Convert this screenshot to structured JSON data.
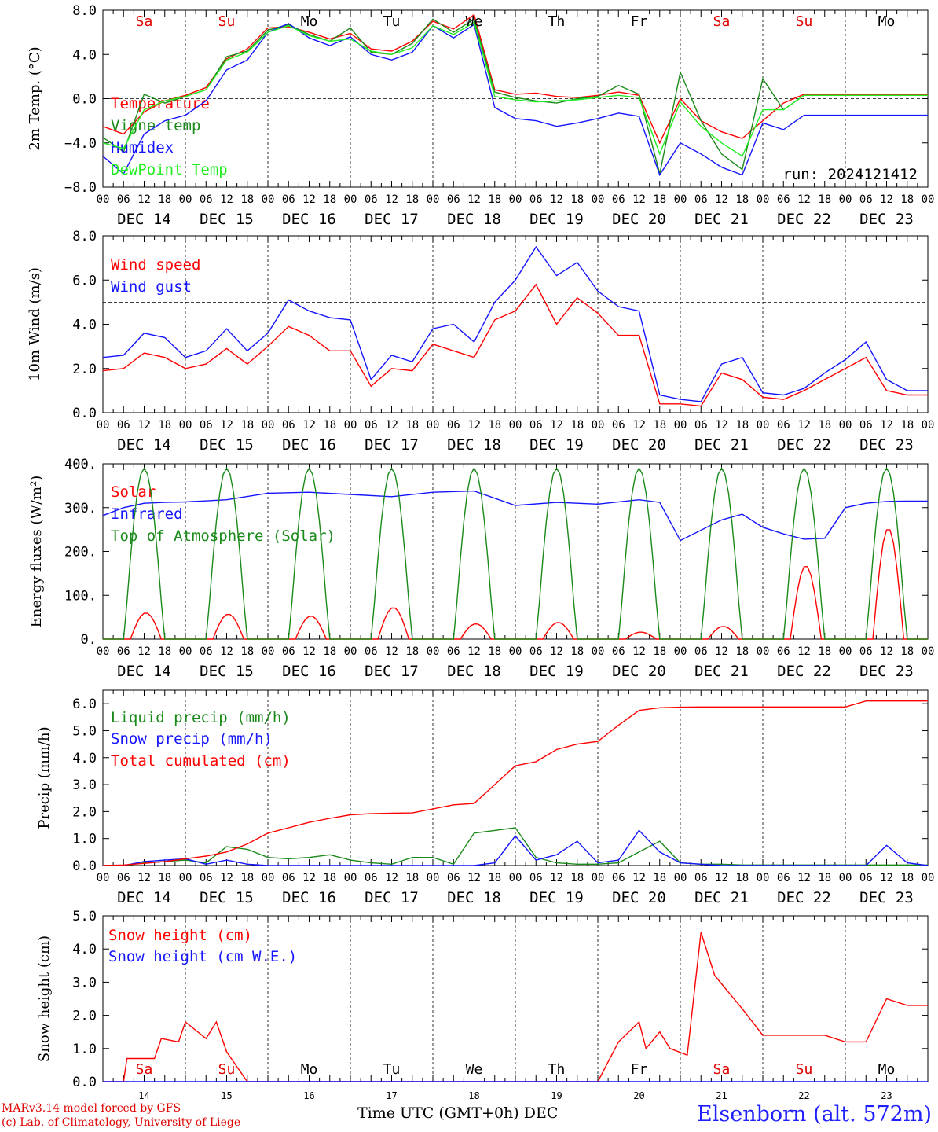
{
  "colors": {
    "red": "#ff0000",
    "darkgreen": "#1a8a1a",
    "blue": "#1515ff",
    "lightgreen": "#22ee22",
    "weekend": "#e00000"
  },
  "day_names": [
    "Sa",
    "Su",
    "Mo",
    "Tu",
    "We",
    "Th",
    "Fr",
    "Sa",
    "Su",
    "Mo"
  ],
  "weekend_flags": [
    true,
    true,
    false,
    false,
    false,
    false,
    false,
    true,
    true,
    false
  ],
  "dates": [
    "DEC 14",
    "DEC 15",
    "DEC 16",
    "DEC 17",
    "DEC 18",
    "DEC 19",
    "DEC 20",
    "DEC 21",
    "DEC 22",
    "DEC 23"
  ],
  "hour_ticks": [
    "00",
    "06",
    "12",
    "18"
  ],
  "last_hour_tick": "00",
  "day_numbers": [
    "14",
    "15",
    "16",
    "17",
    "18",
    "19",
    "20",
    "21",
    "22",
    "23"
  ],
  "run_label": "run: 2024121412",
  "footer": {
    "model": "MARv3.14 model forced by GFS",
    "lab": "(c) Lab. of Climatology, University of Liege",
    "xlabel": "Time UTC (GMT+0h) DEC",
    "station": "Elsenborn (alt. 572m)"
  },
  "chart_data": [
    {
      "type": "line",
      "ylabel": "2m Temp. (°C)",
      "ylim": [
        -8,
        8
      ],
      "yticks": [
        -8,
        -4,
        0,
        4,
        8
      ],
      "ytick_labels": [
        "−8.0",
        "−4.0",
        "0.0",
        "4.0",
        "8.0"
      ],
      "dashed_level": 0,
      "x_unit": "hours since DEC 14 00 UTC",
      "series": [
        {
          "name": "Temperature",
          "color": "#ff0000",
          "x": [
            0,
            6,
            12,
            18,
            24,
            30,
            36,
            42,
            48,
            54,
            60,
            66,
            72,
            78,
            84,
            90,
            96,
            102,
            108,
            114,
            120,
            126,
            132,
            138,
            144,
            150,
            156,
            162,
            168,
            174,
            180,
            186,
            192,
            198,
            204,
            210,
            216,
            222,
            228,
            234,
            240
          ],
          "y": [
            -2.5,
            -3.2,
            -1.2,
            -0.2,
            0.3,
            1.0,
            3.6,
            4.5,
            6.4,
            6.5,
            6.0,
            5.4,
            5.9,
            4.5,
            4.3,
            5.2,
            7.0,
            6.3,
            7.6,
            0.8,
            0.4,
            0.5,
            0.2,
            0.1,
            0.3,
            0.6,
            0.3,
            -4.0,
            0.0,
            -2.0,
            -3.0,
            -3.6,
            -2.0,
            -0.4,
            0.4,
            0.4,
            0.4,
            0.4,
            0.4,
            0.4,
            0.4
          ]
        },
        {
          "name": "Vigne temp",
          "color": "#1a8a1a",
          "x": [
            0,
            6,
            12,
            18,
            24,
            30,
            36,
            42,
            48,
            54,
            60,
            66,
            72,
            78,
            84,
            90,
            96,
            102,
            108,
            114,
            120,
            126,
            132,
            138,
            144,
            150,
            156,
            162,
            168,
            174,
            180,
            186,
            192,
            198,
            204,
            210,
            216,
            222,
            228,
            234,
            240
          ],
          "y": [
            -3.5,
            -4.8,
            0.4,
            -0.4,
            0.2,
            0.8,
            3.8,
            4.3,
            6.2,
            6.7,
            5.8,
            5.2,
            6.4,
            4.2,
            4.0,
            5.0,
            7.2,
            6.0,
            7.2,
            0.6,
            0.1,
            -0.2,
            -0.4,
            0.0,
            0.2,
            1.2,
            0.4,
            -6.8,
            2.4,
            -2.0,
            -5.0,
            -6.4,
            1.8,
            -1.0,
            0.3,
            0.3,
            0.3,
            0.3,
            0.3,
            0.3,
            0.3
          ]
        },
        {
          "name": "Humidex",
          "color": "#1515ff",
          "x": [
            0,
            6,
            12,
            18,
            24,
            30,
            36,
            42,
            48,
            54,
            60,
            66,
            72,
            78,
            84,
            90,
            96,
            102,
            108,
            114,
            120,
            126,
            132,
            138,
            144,
            150,
            156,
            162,
            168,
            174,
            180,
            186,
            192,
            198,
            204,
            210,
            216,
            222,
            228,
            234,
            240
          ],
          "y": [
            -5.2,
            -6.8,
            -3.2,
            -2.0,
            -1.5,
            -0.2,
            2.6,
            3.5,
            6.0,
            6.8,
            5.5,
            4.8,
            5.6,
            4.0,
            3.5,
            4.2,
            6.6,
            5.5,
            6.7,
            -0.8,
            -1.8,
            -2.0,
            -2.5,
            -2.2,
            -1.8,
            -1.3,
            -1.6,
            -6.9,
            -4.0,
            -5.0,
            -6.2,
            -6.9,
            -2.2,
            -2.8,
            -1.5,
            -1.5,
            -1.5,
            -1.5,
            -1.5,
            -1.5,
            -1.5
          ]
        },
        {
          "name": "DewPoint Temp",
          "color": "#22ee22",
          "x": [
            0,
            6,
            12,
            18,
            24,
            30,
            36,
            42,
            48,
            54,
            60,
            66,
            72,
            78,
            84,
            90,
            96,
            102,
            108,
            114,
            120,
            126,
            132,
            138,
            144,
            150,
            156,
            162,
            168,
            174,
            180,
            186,
            192,
            198,
            204,
            210,
            216,
            222,
            228,
            234,
            240
          ],
          "y": [
            -4.0,
            -4.5,
            -1.0,
            -0.2,
            0.2,
            0.8,
            3.5,
            4.2,
            6.0,
            6.6,
            5.7,
            5.2,
            5.4,
            4.3,
            4.0,
            4.6,
            6.6,
            5.8,
            6.9,
            0.2,
            -0.1,
            -0.3,
            -0.2,
            -0.1,
            0.1,
            0.3,
            0.1,
            -5.0,
            -0.3,
            -2.5,
            -4.0,
            -5.2,
            -1.0,
            -1.0,
            0.3,
            0.3,
            0.3,
            0.3,
            0.3,
            0.3,
            0.3
          ]
        }
      ]
    },
    {
      "type": "line",
      "ylabel": "10m Wind (m/s)",
      "ylim": [
        0,
        8
      ],
      "yticks": [
        0,
        2,
        4,
        6,
        8
      ],
      "ytick_labels": [
        "0.0",
        "2.0",
        "4.0",
        "6.0",
        "8.0"
      ],
      "dashed_level": 5,
      "series": [
        {
          "name": "Wind speed",
          "color": "#ff0000",
          "x": [
            0,
            6,
            12,
            18,
            24,
            30,
            36,
            42,
            48,
            54,
            60,
            66,
            72,
            78,
            84,
            90,
            96,
            102,
            108,
            114,
            120,
            126,
            132,
            138,
            144,
            150,
            156,
            162,
            168,
            174,
            180,
            186,
            192,
            198,
            204,
            210,
            216,
            222,
            228,
            234,
            240
          ],
          "y": [
            1.9,
            2.0,
            2.7,
            2.5,
            2.0,
            2.2,
            2.9,
            2.2,
            3.0,
            3.9,
            3.5,
            2.8,
            2.8,
            1.2,
            2.0,
            1.9,
            3.1,
            2.8,
            2.5,
            4.2,
            4.6,
            5.8,
            4.0,
            5.2,
            4.5,
            3.5,
            3.5,
            0.4,
            0.4,
            0.3,
            1.8,
            1.5,
            0.7,
            0.6,
            1.0,
            1.5,
            2.0,
            2.5,
            1.0,
            0.8,
            0.8
          ]
        },
        {
          "name": "Wind gust",
          "color": "#1515ff",
          "x": [
            0,
            6,
            12,
            18,
            24,
            30,
            36,
            42,
            48,
            54,
            60,
            66,
            72,
            78,
            84,
            90,
            96,
            102,
            108,
            114,
            120,
            126,
            132,
            138,
            144,
            150,
            156,
            162,
            168,
            174,
            180,
            186,
            192,
            198,
            204,
            210,
            216,
            222,
            228,
            234,
            240
          ],
          "y": [
            2.5,
            2.6,
            3.6,
            3.4,
            2.5,
            2.8,
            3.8,
            2.8,
            3.6,
            5.1,
            4.6,
            4.3,
            4.2,
            1.5,
            2.6,
            2.3,
            3.8,
            4.0,
            3.2,
            5.0,
            6.0,
            7.5,
            6.2,
            6.8,
            5.5,
            4.8,
            4.6,
            0.8,
            0.6,
            0.5,
            2.2,
            2.5,
            0.9,
            0.8,
            1.1,
            1.8,
            2.4,
            3.2,
            1.5,
            1.0,
            1.0
          ]
        }
      ]
    },
    {
      "type": "line",
      "ylabel": "Energy fluxes (W/m²)",
      "ylim": [
        0,
        400
      ],
      "yticks": [
        0,
        100,
        200,
        300,
        400
      ],
      "ytick_labels": [
        "0.",
        "100.",
        "200.",
        "300.",
        "400."
      ],
      "series": [
        {
          "name": "Solar",
          "color": "#ff0000",
          "peak_hour": 12.5,
          "daily_peaks": [
            60,
            57,
            53,
            72,
            35,
            38,
            16,
            29,
            168,
            253
          ]
        },
        {
          "name": "Infrared",
          "color": "#1515ff",
          "x": [
            0,
            6,
            12,
            18,
            24,
            36,
            48,
            60,
            72,
            84,
            96,
            108,
            120,
            132,
            144,
            156,
            162,
            168,
            180,
            186,
            192,
            198,
            204,
            210,
            216,
            222,
            228,
            234,
            240
          ],
          "y": [
            282,
            300,
            310,
            312,
            313,
            318,
            333,
            335,
            330,
            325,
            335,
            338,
            305,
            312,
            308,
            318,
            312,
            225,
            272,
            285,
            255,
            240,
            228,
            230,
            300,
            310,
            314,
            315,
            315
          ]
        },
        {
          "name": "Top of Atmosphere (Solar)",
          "color": "#1a8a1a",
          "peak_hour": 12,
          "daily_peaks": [
            390,
            390,
            390,
            390,
            390,
            390,
            390,
            390,
            390,
            390
          ]
        }
      ]
    },
    {
      "type": "line",
      "ylabel": "Precip (mm/h)",
      "ylim": [
        0,
        6.5
      ],
      "yticks": [
        0,
        1,
        2,
        3,
        4,
        5,
        6
      ],
      "ytick_labels": [
        "0.0",
        "1.0",
        "2.0",
        "3.0",
        "4.0",
        "5.0",
        "6.0"
      ],
      "series": [
        {
          "name": "Liquid precip (mm/h)",
          "color": "#1a8a1a",
          "x": [
            0,
            6,
            12,
            18,
            24,
            30,
            36,
            42,
            48,
            54,
            60,
            66,
            72,
            78,
            84,
            90,
            96,
            102,
            108,
            114,
            120,
            126,
            132,
            138,
            144,
            150,
            156,
            162,
            168,
            174,
            180,
            186,
            192,
            198,
            204,
            210,
            216,
            222,
            228,
            234,
            240
          ],
          "y": [
            0,
            0,
            0.1,
            0.15,
            0.2,
            0.1,
            0.7,
            0.6,
            0.3,
            0.25,
            0.3,
            0.4,
            0.2,
            0.1,
            0.05,
            0.3,
            0.3,
            0.05,
            1.2,
            1.3,
            1.4,
            0.3,
            0.1,
            0.05,
            0.05,
            0.1,
            0.5,
            0.9,
            0.1,
            0.05,
            0.05,
            0.02,
            0.02,
            0.02,
            0.02,
            0.02,
            0.02,
            0.02,
            0.02,
            0.02,
            0.02
          ]
        },
        {
          "name": "Snow precip (mm/h)",
          "color": "#1515ff",
          "x": [
            0,
            6,
            12,
            18,
            24,
            30,
            36,
            42,
            48,
            54,
            60,
            66,
            72,
            78,
            84,
            90,
            96,
            102,
            108,
            114,
            120,
            126,
            132,
            138,
            144,
            150,
            156,
            162,
            168,
            174,
            180,
            186,
            192,
            198,
            204,
            210,
            216,
            222,
            228,
            234,
            240
          ],
          "y": [
            0,
            0,
            0.15,
            0.2,
            0.25,
            0.05,
            0.2,
            0.05,
            0,
            0,
            0,
            0,
            0,
            0,
            0,
            0,
            0,
            0,
            0,
            0.1,
            1.1,
            0.2,
            0.4,
            0.9,
            0.1,
            0.2,
            1.3,
            0.5,
            0.1,
            0.05,
            0,
            0,
            0,
            0,
            0,
            0,
            0,
            0,
            0.75,
            0.1,
            0
          ]
        },
        {
          "name": "Total cumulated (cm)",
          "color": "#ff0000",
          "x": [
            0,
            6,
            12,
            18,
            24,
            30,
            36,
            42,
            48,
            54,
            60,
            66,
            72,
            78,
            84,
            90,
            96,
            102,
            108,
            114,
            120,
            126,
            132,
            138,
            144,
            150,
            156,
            162,
            168,
            174,
            180,
            186,
            192,
            198,
            204,
            210,
            216,
            222,
            228,
            234,
            240
          ],
          "y": [
            0,
            0.02,
            0.08,
            0.15,
            0.25,
            0.35,
            0.5,
            0.8,
            1.2,
            1.4,
            1.6,
            1.75,
            1.88,
            1.92,
            1.94,
            1.95,
            2.1,
            2.25,
            2.3,
            3.0,
            3.7,
            3.85,
            4.3,
            4.5,
            4.6,
            5.2,
            5.75,
            5.85,
            5.87,
            5.88,
            5.88,
            5.88,
            5.88,
            5.88,
            5.88,
            5.88,
            5.88,
            6.1,
            6.1,
            6.1,
            6.1
          ]
        }
      ]
    },
    {
      "type": "line",
      "ylabel": "Snow height (cm)",
      "ylim": [
        0,
        5
      ],
      "yticks": [
        0,
        1,
        2,
        3,
        4,
        5
      ],
      "ytick_labels": [
        "0.0",
        "1.0",
        "2.0",
        "3.0",
        "4.0",
        "5.0"
      ],
      "series": [
        {
          "name": "Snow height (cm)",
          "color": "#ff0000",
          "x": [
            0,
            6,
            7,
            12,
            15,
            17,
            22,
            24,
            30,
            33,
            36,
            42,
            60,
            96,
            144,
            150,
            156,
            158,
            162,
            165,
            170,
            174,
            178,
            186,
            192,
            195,
            198,
            201,
            204,
            210,
            216,
            222,
            228,
            234,
            240
          ],
          "y": [
            0,
            0,
            0.7,
            0.7,
            0.7,
            1.3,
            1.2,
            1.8,
            1.3,
            1.8,
            0.9,
            0,
            0,
            0,
            0,
            1.2,
            1.8,
            1.0,
            1.5,
            1.0,
            0.8,
            4.5,
            3.2,
            2.2,
            1.4,
            1.4,
            1.4,
            1.4,
            1.4,
            1.4,
            1.2,
            1.2,
            2.5,
            2.3,
            2.3
          ]
        },
        {
          "name": "Snow height (cm W.E.)",
          "color": "#1515ff",
          "x": [
            0,
            240
          ],
          "y": [
            0,
            0
          ]
        }
      ]
    }
  ]
}
